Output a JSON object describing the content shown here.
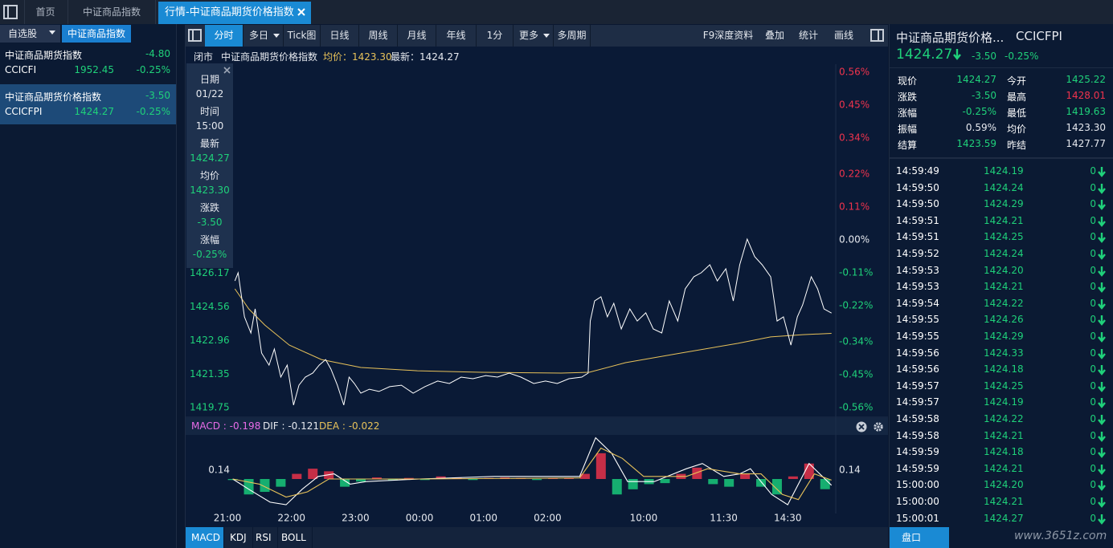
{
  "tabs": {
    "home": "首页",
    "index": "中证商品指数",
    "active": "行情-中证商品期货价格指数"
  },
  "left_panel": {
    "tabs": [
      "自选股",
      "中证商品指数"
    ],
    "rows": [
      {
        "name": "中证商品期货指数",
        "change": "-4.80",
        "code": "CCICFI",
        "price": "1952.45",
        "pct": "-0.25%"
      },
      {
        "name": "中证商品期货价格指数",
        "change": "-3.50",
        "code": "CCICFPI",
        "price": "1424.27",
        "pct": "-0.25%"
      }
    ]
  },
  "toolbar": {
    "left": [
      "分时",
      "多日",
      "Tick图",
      "日线",
      "周线",
      "月线",
      "年线",
      "1分",
      "更多",
      "多周期"
    ],
    "right": [
      "F9深度资料",
      "叠加",
      "统计",
      "画线"
    ]
  },
  "info_bar": [
    "闭市",
    "中证商品期货价格指数",
    "均价：1423.30",
    "最新：1424.27"
  ],
  "popup": [
    [
      "日期",
      "01/22"
    ],
    [
      "时间",
      "15:00"
    ],
    [
      "最新",
      "1424.27"
    ],
    [
      "均价",
      "1423.30"
    ],
    [
      "涨跌",
      "-3.50"
    ],
    [
      "涨幅",
      "-0.25%"
    ]
  ],
  "macd_bar": [
    "MACD : -0.198",
    "DIF : -0.121",
    "DEA : -0.022"
  ],
  "indicator_tabs": [
    "MACD",
    "KDJ",
    "RSI",
    "BOLL"
  ],
  "quote": {
    "title": "中证商品期货价格...",
    "code": "CCICFPI",
    "price": "1424.27",
    "change": "-3.50",
    "pct": "-0.25%",
    "fields": [
      [
        "现价",
        "1424.27",
        "今开",
        "1425.22"
      ],
      [
        "涨跌",
        "-3.50",
        "最高",
        "1428.01"
      ],
      [
        "涨幅",
        "-0.25%",
        "最低",
        "1419.63"
      ],
      [
        "振幅",
        "0.59%",
        "均价",
        "1423.30"
      ],
      [
        "结算",
        "1423.59",
        "昨结",
        "1427.77"
      ]
    ]
  },
  "ticks": [
    [
      "14:59:49",
      "1424.19",
      "0"
    ],
    [
      "14:59:50",
      "1424.24",
      "0"
    ],
    [
      "14:59:50",
      "1424.29",
      "0"
    ],
    [
      "14:59:51",
      "1424.21",
      "0"
    ],
    [
      "14:59:51",
      "1424.25",
      "0"
    ],
    [
      "14:59:52",
      "1424.24",
      "0"
    ],
    [
      "14:59:53",
      "1424.20",
      "0"
    ],
    [
      "14:59:53",
      "1424.21",
      "0"
    ],
    [
      "14:59:54",
      "1424.22",
      "0"
    ],
    [
      "14:59:55",
      "1424.26",
      "0"
    ],
    [
      "14:59:55",
      "1424.29",
      "0"
    ],
    [
      "14:59:56",
      "1424.33",
      "0"
    ],
    [
      "14:59:56",
      "1424.18",
      "0"
    ],
    [
      "14:59:57",
      "1424.25",
      "0"
    ],
    [
      "14:59:57",
      "1424.19",
      "0"
    ],
    [
      "14:59:58",
      "1424.22",
      "0"
    ],
    [
      "14:59:58",
      "1424.21",
      "0"
    ],
    [
      "14:59:59",
      "1424.18",
      "0"
    ],
    [
      "14:59:59",
      "1424.21",
      "0"
    ],
    [
      "15:00:00",
      "1424.20",
      "0"
    ],
    [
      "15:00:00",
      "1424.21",
      "0"
    ],
    [
      "15:00:01",
      "1424.27",
      "0"
    ]
  ],
  "button": "盘口",
  "watermark": "www.3651z.com",
  "chart_data": [
    {
      "type": "line",
      "xlim": [
        0,
        570
      ],
      "xticks": [
        {
          "value": 0,
          "label": "21:00"
        },
        {
          "value": 60,
          "label": "22:00"
        },
        {
          "value": 120,
          "label": "23:00"
        },
        {
          "value": 180,
          "label": "00:00"
        },
        {
          "value": 240,
          "label": "01:00"
        },
        {
          "value": 300,
          "label": "02:00"
        },
        {
          "value": 390,
          "label": "10:00"
        },
        {
          "value": 465,
          "label": "11:30"
        },
        {
          "value": 525,
          "label": "14:30"
        }
      ],
      "ylim": [
        1419.75,
        1435.79
      ],
      "yticks": [
        1419.75,
        1421.35,
        1422.96,
        1424.56,
        1426.17
      ],
      "y2lim": [
        -0.56,
        0.56
      ],
      "y2ticks": [
        {
          "value": 0.56,
          "label": "0.56%"
        },
        {
          "value": 0.45,
          "label": "0.45%"
        },
        {
          "value": 0.34,
          "label": "0.34%"
        },
        {
          "value": 0.22,
          "label": "0.22%"
        },
        {
          "value": 0.11,
          "label": "0.11%"
        },
        {
          "value": 0,
          "label": "0.00%"
        },
        {
          "value": -0.11,
          "label": "-0.11%"
        },
        {
          "value": -0.22,
          "label": "-0.22%"
        },
        {
          "value": -0.34,
          "label": "-0.34%"
        },
        {
          "value": -0.45,
          "label": "-0.45%"
        },
        {
          "value": -0.56,
          "label": "-0.56%"
        }
      ],
      "series": [
        {
          "name": "最新",
          "color": "#ffffff",
          "x": [
            7,
            10,
            16,
            22,
            26,
            32,
            39,
            44,
            50,
            56,
            62,
            67,
            73,
            80,
            86,
            92,
            97,
            103,
            109,
            114,
            119,
            125,
            133,
            142,
            152,
            163,
            174,
            185,
            197,
            208,
            219,
            230,
            242,
            253,
            264,
            275,
            287,
            298,
            309,
            320,
            332,
            338,
            340,
            344,
            350,
            356,
            362,
            369,
            377,
            384,
            392,
            399,
            407,
            414,
            422,
            429,
            437,
            444,
            452,
            459,
            467,
            474,
            480,
            487,
            494,
            501,
            509,
            515,
            521,
            528,
            534,
            539,
            547,
            553,
            559,
            566
          ],
          "values": [
            1425.81,
            1426.2,
            1424.09,
            1423.32,
            1424.47,
            1422.36,
            1421.78,
            1422.55,
            1421.21,
            1421.78,
            1419.87,
            1420.82,
            1421.21,
            1421.4,
            1421.78,
            1422.05,
            1421.59,
            1420.82,
            1419.87,
            1421.21,
            1420.9,
            1420.44,
            1420.63,
            1420.52,
            1420.75,
            1420.82,
            1420.44,
            1420.75,
            1421.02,
            1420.9,
            1421.21,
            1421.13,
            1421.28,
            1421.21,
            1421.4,
            1421.21,
            1420.9,
            1421.02,
            1420.9,
            1421.13,
            1421.21,
            1421.4,
            1423.89,
            1424.85,
            1425.05,
            1424.09,
            1424.74,
            1423.51,
            1424.47,
            1423.89,
            1424.28,
            1423.51,
            1423.32,
            1424.85,
            1423.89,
            1425.43,
            1426.01,
            1426.2,
            1426.58,
            1425.81,
            1426.39,
            1424.85,
            1426.58,
            1427.81,
            1426.97,
            1426.58,
            1426.01,
            1423.89,
            1424.09,
            1422.74,
            1424.09,
            1424.66,
            1426.01,
            1425.43,
            1424.47,
            1424.27
          ]
        },
        {
          "name": "均价",
          "color": "#e8c25a",
          "x": [
            7,
            20,
            35,
            58,
            88,
            125,
            178,
            238,
            313,
            339,
            373,
            425,
            478,
            509,
            539,
            566
          ],
          "values": [
            1425.43,
            1424.47,
            1423.7,
            1422.74,
            1422.05,
            1421.67,
            1421.51,
            1421.44,
            1421.4,
            1421.44,
            1421.9,
            1422.36,
            1422.82,
            1423.13,
            1423.24,
            1423.3
          ]
        }
      ]
    },
    {
      "type": "macd",
      "xlim": [
        0,
        570
      ],
      "ylim": [
        -0.67,
        0.81
      ],
      "yticks": [
        0.14
      ],
      "y2ticks": [
        0.14
      ],
      "series": [
        {
          "name": "MACD",
          "up_color": "#e8334a",
          "down_color": "#19c97a",
          "x": [
            5,
            20,
            35,
            50,
            65,
            80,
            95,
            110,
            125,
            140,
            155,
            170,
            185,
            200,
            215,
            230,
            245,
            260,
            275,
            290,
            305,
            320,
            335,
            350,
            365,
            380,
            395,
            410,
            425,
            440,
            455,
            470,
            485,
            500,
            515,
            530,
            545,
            560
          ],
          "values": [
            -0.02,
            -0.3,
            -0.25,
            -0.15,
            0.1,
            0.2,
            0.15,
            -0.15,
            -0.05,
            0.03,
            -0.03,
            0.02,
            -0.02,
            0.05,
            0.03,
            -0.02,
            0.02,
            0.03,
            0.02,
            -0.02,
            0.02,
            0.02,
            0.1,
            0.5,
            -0.3,
            -0.2,
            -0.1,
            -0.08,
            0.1,
            0.22,
            -0.1,
            -0.15,
            0.1,
            -0.15,
            -0.3,
            0.05,
            0.3,
            -0.198
          ]
        },
        {
          "name": "DIF",
          "color": "#ffffff",
          "x": [
            5,
            20,
            40,
            55,
            70,
            85,
            100,
            115,
            130,
            180,
            250,
            330,
            345,
            360,
            375,
            400,
            430,
            445,
            465,
            480,
            490,
            510,
            525,
            545,
            566
          ],
          "values": [
            0,
            -0.2,
            -0.45,
            -0.5,
            -0.2,
            0.05,
            0.1,
            -0.1,
            -0.05,
            0,
            0.05,
            0.05,
            0.8,
            0.5,
            -0.05,
            -0.05,
            0.2,
            0.3,
            0.05,
            0.1,
            0.2,
            -0.3,
            -0.5,
            0.3,
            -0.121
          ]
        },
        {
          "name": "DEA",
          "color": "#e8c25a",
          "x": [
            5,
            30,
            55,
            75,
            95,
            120,
            180,
            330,
            350,
            370,
            390,
            430,
            450,
            480,
            500,
            520,
            535,
            550,
            566
          ],
          "values": [
            0,
            -0.1,
            -0.35,
            -0.25,
            0,
            0,
            0,
            0.02,
            0.6,
            0.4,
            0.05,
            0.05,
            0.2,
            0.1,
            0.1,
            -0.3,
            -0.4,
            0.1,
            -0.022
          ]
        }
      ]
    }
  ]
}
